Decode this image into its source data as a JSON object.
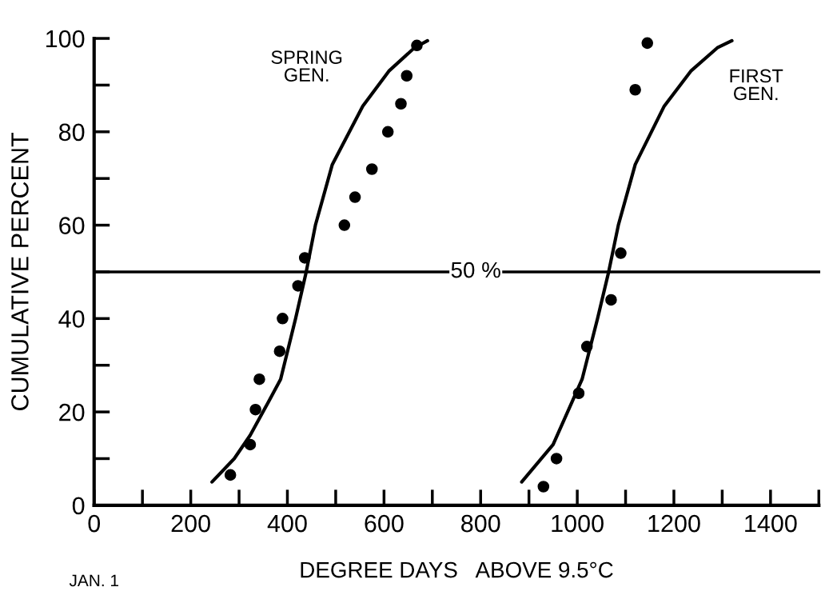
{
  "chart_data": {
    "type": "scatter",
    "xlabel": "DEGREE DAYS   ABOVE 9.5°C",
    "ylabel": "CUMULATIVE PERCENT",
    "xlim": [
      0,
      1500
    ],
    "ylim": [
      0,
      100
    ],
    "xticks": [
      0,
      200,
      400,
      600,
      800,
      1000,
      1200,
      1400
    ],
    "yticks": [
      0,
      20,
      40,
      60,
      80,
      100
    ],
    "grid": false,
    "marker": "circle",
    "series": [
      {
        "color": "#000000",
        "x": [
          282,
          323,
          334,
          342,
          384,
          390,
          422,
          436,
          518,
          540,
          575,
          608,
          635,
          647,
          668
        ],
        "values": [
          6.5,
          13,
          20.5,
          27,
          33,
          40,
          47,
          53,
          60,
          66,
          72,
          80,
          86,
          92,
          98.5
        ]
      },
      {
        "type": "line",
        "name": "SPRING\nGEN.",
        "color": "#000000",
        "marker": "none",
        "x": [
          244,
          290,
          323,
          360,
          386,
          417,
          439,
          458,
          493,
          556,
          610,
          663,
          690
        ],
        "values": [
          5,
          10,
          15,
          22,
          27,
          40,
          50,
          60,
          73,
          85.5,
          93,
          98,
          99.5
        ]
      },
      {
        "color": "#000000",
        "x": [
          930,
          957,
          1003,
          1020,
          1070,
          1090,
          1120,
          1145
        ],
        "values": [
          4,
          10,
          24,
          34,
          44,
          54,
          89,
          99
        ]
      },
      {
        "type": "line",
        "name": "FIRST\nGEN.",
        "color": "#000000",
        "marker": "none",
        "x": [
          885,
          950,
          1010,
          1042,
          1065,
          1085,
          1120,
          1180,
          1235,
          1290,
          1320
        ],
        "values": [
          5,
          13,
          27,
          40,
          50,
          60,
          73,
          85.5,
          93,
          98,
          99.5
        ]
      }
    ],
    "ref_lines": [
      {
        "axis": "y",
        "value": 50,
        "label": "50 %",
        "color": "#000000"
      }
    ],
    "annotations": [
      "JAN. 1"
    ]
  }
}
